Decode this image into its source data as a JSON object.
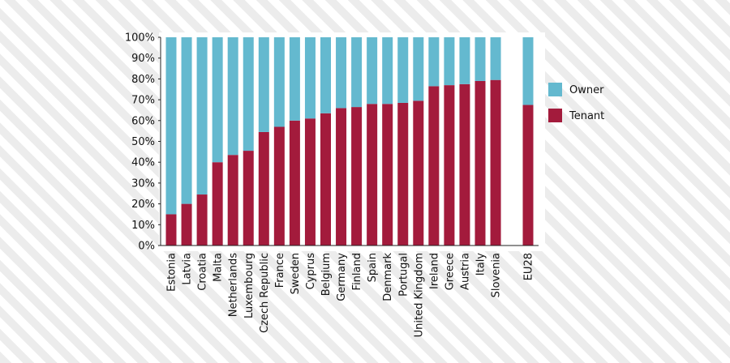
{
  "chart_data": {
    "type": "bar",
    "stacked": true,
    "categories": [
      "Estonia",
      "Latvia",
      "Croatia",
      "Malta",
      "Netherlands",
      "Luxembourg",
      "Czech Republic",
      "France",
      "Sweden",
      "Cyprus",
      "Belgium",
      "Germany",
      "Finland",
      "Spain",
      "Denmark",
      "Portugal",
      "United Kingdom",
      "Ireland",
      "Greece",
      "Austria",
      "Italy",
      "Slovenia",
      "EU28"
    ],
    "series": [
      {
        "name": "Tenant",
        "color": "#a31b3c",
        "values": [
          15,
          20,
          24.5,
          40,
          43.5,
          45.5,
          54.5,
          57,
          60,
          61,
          63.5,
          66,
          66.5,
          68,
          68,
          68.5,
          69.5,
          76.5,
          77,
          77.5,
          79,
          79.5,
          67.5
        ]
      },
      {
        "name": "Owner",
        "color": "#64b9cf",
        "values": [
          85,
          80,
          75.5,
          60,
          56.5,
          54.5,
          45.5,
          43,
          40,
          39,
          36.5,
          34,
          33.5,
          32,
          32,
          31.5,
          30.5,
          23.5,
          23,
          22.5,
          21,
          20.5,
          32.5
        ]
      }
    ],
    "yticks": [
      "0%",
      "10%",
      "20%",
      "30%",
      "40%",
      "50%",
      "60%",
      "70%",
      "80%",
      "90%",
      "100%"
    ],
    "ylim": [
      0,
      100
    ],
    "legend": {
      "position": "right",
      "entries": [
        "Owner",
        "Tenant"
      ]
    },
    "title": "",
    "xlabel": "",
    "ylabel": "",
    "grid": false
  }
}
